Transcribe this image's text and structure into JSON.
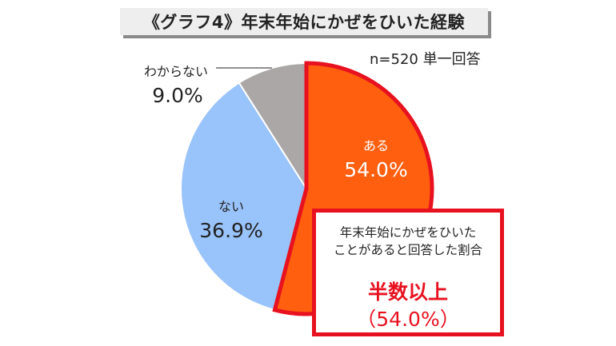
{
  "header": {
    "title": "《グラフ4》年末年始にかぜをひいた経験",
    "sample_note": "n=520 単一回答"
  },
  "colors": {
    "aru": "#ff5f0f",
    "nai": "#99c3fb",
    "wakaranai": "#aaa7a6",
    "accent_red": "#e8111f"
  },
  "chart_data": {
    "type": "pie",
    "title": "《グラフ4》年末年始にかぜをひいた経験",
    "subtitle": "n=520 単一回答",
    "slices": [
      {
        "label": "ある",
        "value": 54.0,
        "display": "54.0%"
      },
      {
        "label": "ない",
        "value": 36.9,
        "display": "36.9%"
      },
      {
        "label": "わからない",
        "value": 9.0,
        "display": "9.0%"
      }
    ],
    "start": "12 o'clock",
    "direction": "clockwise",
    "highlight": "ある"
  },
  "callout": {
    "line1": "年末年始にかぜをひいた",
    "line2": "ことがあると回答した割合",
    "headline": "半数以上",
    "value": "（54.0%）"
  }
}
